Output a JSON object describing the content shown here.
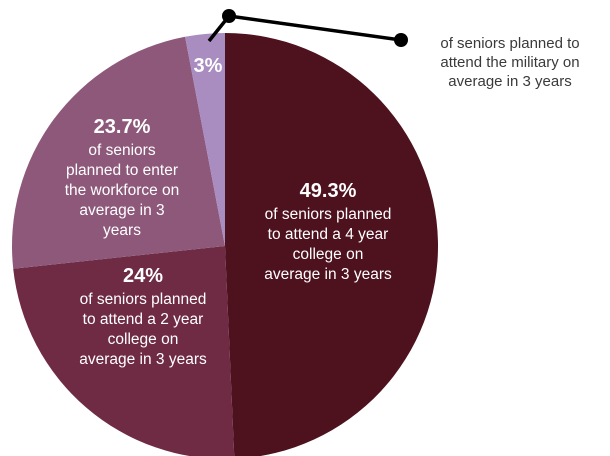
{
  "chart_data": {
    "type": "pie",
    "title": "",
    "colors": [
      "#4e111e",
      "#6f2b44",
      "#8d587a",
      "#a98cc0"
    ],
    "slices": [
      {
        "value": 49.3,
        "pct_label": "49.3%",
        "desc_lines": [
          "of seniors planned",
          "to attend a 4 year",
          "college on",
          "average in 3 years"
        ]
      },
      {
        "value": 24,
        "pct_label": "24%",
        "desc_lines": [
          "of seniors planned",
          "to attend a 2 year",
          "college on",
          "average in 3 years"
        ]
      },
      {
        "value": 23.7,
        "pct_label": "23.7%",
        "desc_lines": [
          "of seniors",
          "planned to enter",
          "the workforce on",
          "average in 3",
          "years"
        ]
      },
      {
        "value": 3,
        "pct_label": "3%",
        "desc_lines": [
          "of seniors planned to",
          "attend the military on",
          "average in 3 years"
        ]
      }
    ]
  }
}
